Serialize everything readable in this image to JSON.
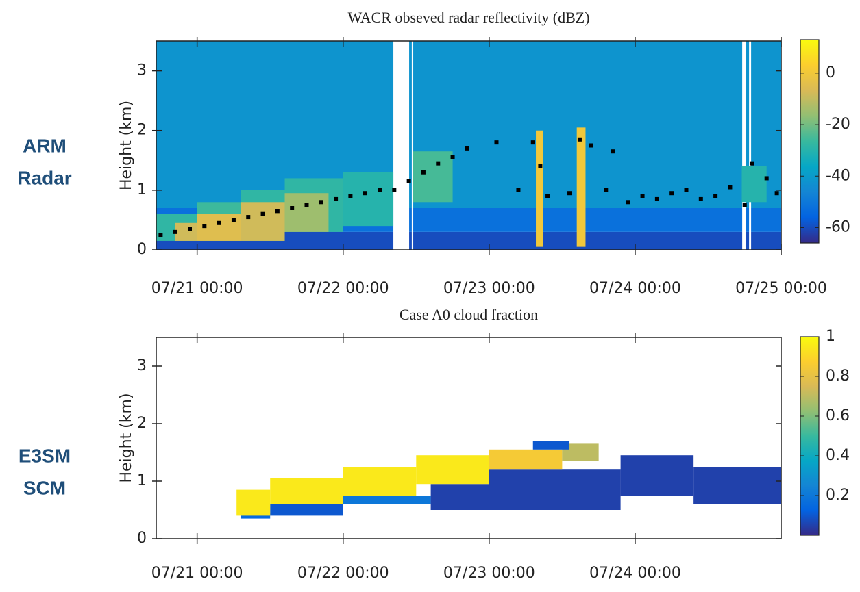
{
  "chart_data": [
    {
      "type": "heatmap",
      "title": "WACR obseved radar reflectivity (dBZ)",
      "ylabel": "Height (km)",
      "row_label": [
        "ARM",
        "Radar"
      ],
      "xlim": [
        20.72,
        25
      ],
      "xticks": [
        {
          "value": 21,
          "label": "07/21 00:00"
        },
        {
          "value": 22,
          "label": "07/22 00:00"
        },
        {
          "value": 23,
          "label": "07/23 00:00"
        },
        {
          "value": 24,
          "label": "07/24 00:00"
        },
        {
          "value": 25,
          "label": "07/25 00:00"
        }
      ],
      "ylim": [
        0,
        3.5
      ],
      "yticks": [
        0,
        1,
        2,
        3
      ],
      "clim": [
        -66,
        13
      ],
      "cticks": [
        0,
        -20,
        -40,
        -60
      ],
      "colormap": [
        "#352a87",
        "#0363e1",
        "#1485d4",
        "#06a7c6",
        "#38b99e",
        "#92bf73",
        "#d9ba56",
        "#fcce2e",
        "#f9fb0e"
      ],
      "cells": [
        [
          20.72,
          22.344,
          0,
          0.3,
          -60
        ],
        [
          20.72,
          22.344,
          0.3,
          0.7,
          -52
        ],
        [
          20.72,
          22.344,
          0.7,
          3.5,
          -42
        ],
        [
          22.452,
          22.47,
          0,
          0.3,
          -60
        ],
        [
          22.452,
          22.47,
          0.3,
          0.7,
          -52
        ],
        [
          22.452,
          22.47,
          0.7,
          3.5,
          -42
        ],
        [
          22.48,
          24.733,
          0,
          0.3,
          -60
        ],
        [
          22.48,
          24.733,
          0.3,
          0.7,
          -52
        ],
        [
          22.48,
          24.733,
          0.7,
          3.5,
          -42
        ],
        [
          24.756,
          24.78,
          0,
          0.3,
          -60
        ],
        [
          24.756,
          24.78,
          0.3,
          0.7,
          -52
        ],
        [
          24.756,
          24.78,
          0.7,
          3.5,
          -42
        ],
        [
          24.794,
          25,
          0,
          0.3,
          -60
        ],
        [
          24.794,
          25,
          0.3,
          0.7,
          -52
        ],
        [
          24.794,
          25,
          0.7,
          3.5,
          -42
        ],
        [
          20.72,
          21.0,
          0.15,
          0.6,
          -28
        ],
        [
          21.0,
          21.3,
          0.15,
          0.8,
          -26
        ],
        [
          21.3,
          21.6,
          0.15,
          1.0,
          -28
        ],
        [
          21.6,
          22.0,
          0.3,
          1.2,
          -28
        ],
        [
          22.0,
          22.344,
          0.4,
          1.3,
          -30
        ],
        [
          20.85,
          21.0,
          0.15,
          0.45,
          -8
        ],
        [
          21.0,
          21.3,
          0.15,
          0.6,
          -5
        ],
        [
          21.3,
          21.6,
          0.15,
          0.8,
          -8
        ],
        [
          21.6,
          21.9,
          0.3,
          0.95,
          -15
        ],
        [
          22.48,
          22.75,
          0.8,
          1.65,
          -25
        ],
        [
          23.32,
          23.37,
          0.05,
          2.0,
          0
        ],
        [
          23.6,
          23.66,
          0.05,
          2.05,
          0
        ],
        [
          24.73,
          24.9,
          0.8,
          1.4,
          -30
        ]
      ],
      "points": {
        "color": "#000000",
        "x": [
          20.75,
          20.85,
          20.95,
          21.05,
          21.15,
          21.25,
          21.35,
          21.45,
          21.55,
          21.65,
          21.75,
          21.85,
          21.95,
          22.05,
          22.15,
          22.25,
          22.35,
          22.45,
          22.55,
          22.65,
          22.75,
          22.85,
          23.05,
          23.2,
          23.3,
          23.35,
          23.4,
          23.55,
          23.62,
          23.7,
          23.8,
          23.85,
          23.95,
          24.05,
          24.15,
          24.25,
          24.35,
          24.45,
          24.55,
          24.65,
          24.75,
          24.8,
          24.9,
          24.97
        ],
        "values": [
          0.25,
          0.3,
          0.35,
          0.4,
          0.45,
          0.5,
          0.55,
          0.6,
          0.65,
          0.7,
          0.75,
          0.8,
          0.85,
          0.9,
          0.95,
          1.0,
          1.0,
          1.15,
          1.3,
          1.45,
          1.55,
          1.7,
          1.8,
          1.0,
          1.8,
          1.4,
          0.9,
          0.95,
          1.85,
          1.75,
          1.0,
          1.65,
          0.8,
          0.9,
          0.85,
          0.95,
          1.0,
          0.85,
          0.9,
          1.05,
          0.75,
          1.45,
          1.2,
          0.95
        ]
      }
    },
    {
      "type": "heatmap",
      "title": "Case A0 cloud fraction",
      "ylabel": "Height (km)",
      "row_label": [
        "E3SM",
        "SCM"
      ],
      "xlim": [
        20.72,
        25
      ],
      "xticks": [
        {
          "value": 21,
          "label": "07/21 00:00"
        },
        {
          "value": 22,
          "label": "07/22 00:00"
        },
        {
          "value": 23,
          "label": "07/23 00:00"
        },
        {
          "value": 24,
          "label": "07/24 00:00"
        }
      ],
      "ylim": [
        0,
        3.5
      ],
      "yticks": [
        0,
        1,
        2,
        3
      ],
      "clim": [
        0,
        1
      ],
      "cticks": [
        0.2,
        0.4,
        0.6,
        0.8,
        1
      ],
      "colormap": [
        "#352a87",
        "#0363e1",
        "#1485d4",
        "#06a7c6",
        "#38b99e",
        "#92bf73",
        "#d9ba56",
        "#fcce2e",
        "#f9fb0e"
      ],
      "cells": [
        [
          21.3,
          21.5,
          0.35,
          0.45,
          0.15
        ],
        [
          21.5,
          22.0,
          0.4,
          0.6,
          0.1
        ],
        [
          22.0,
          22.6,
          0.6,
          0.75,
          0.2
        ],
        [
          22.6,
          23.0,
          0.5,
          0.95,
          0.05
        ],
        [
          23.0,
          23.9,
          0.5,
          1.2,
          0.05
        ],
        [
          23.9,
          24.4,
          0.75,
          1.45,
          0.05
        ],
        [
          24.4,
          25,
          0.6,
          1.25,
          0.05
        ],
        [
          21.27,
          21.5,
          0.4,
          0.85,
          0.95
        ],
        [
          21.5,
          22.0,
          0.6,
          1.05,
          0.95
        ],
        [
          22.0,
          22.5,
          0.75,
          1.25,
          0.95
        ],
        [
          22.5,
          23.0,
          0.95,
          1.45,
          0.95
        ],
        [
          23.0,
          23.5,
          1.2,
          1.55,
          0.85
        ],
        [
          23.5,
          23.75,
          1.35,
          1.65,
          0.7
        ],
        [
          23.3,
          23.55,
          1.55,
          1.7,
          0.1
        ]
      ]
    }
  ]
}
